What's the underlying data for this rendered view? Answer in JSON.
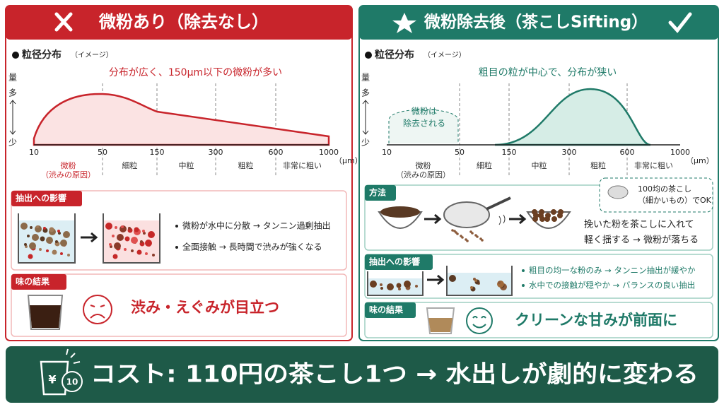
{
  "left": {
    "title": "微粉あり（除去なし）",
    "chart": {
      "heading": "粒径分布",
      "note": "（イメージ）",
      "annotation": "分布が広く、150μm以下の微粉が多い",
      "y_label": "量",
      "y_high": "多",
      "y_low": "少",
      "x_ticks": [
        10,
        50,
        150,
        300,
        600,
        1000
      ],
      "x_unit": "（μm）",
      "ranges": [
        "微粉",
        "細粒",
        "中粒",
        "粗粒",
        "非常に粗い"
      ],
      "fines_note": "（渋みの原因）"
    },
    "extraction": {
      "label": "抽出への影響",
      "points": [
        "微粉が水中に分散 → タンニン過剰抽出",
        "全面接触 → 長時間で渋みが強くなる"
      ]
    },
    "taste": {
      "label": "味の結果",
      "text": "渋み・えぐみが目立つ"
    }
  },
  "right": {
    "title": "微粉除去後（茶こしSifting）",
    "chart": {
      "heading": "粒径分布",
      "note": "（イメージ）",
      "annotation": "粗目の粒が中心で、分布が狭い",
      "y_label": "量",
      "y_high": "多",
      "y_low": "少",
      "x_ticks": [
        10,
        50,
        150,
        300,
        600,
        1000
      ],
      "x_unit": "（μm）",
      "ranges": [
        "微粉",
        "細粒",
        "中粒",
        "粗粒",
        "非常に粗い"
      ],
      "fines_note": "（渋みの原因）",
      "removed": [
        "微粉は",
        "除去される"
      ]
    },
    "method": {
      "label": "方法",
      "tip": [
        "100均の茶こし",
        "（細かいもの）でOK"
      ],
      "steps": [
        "挽いた粉を茶こしに入れて",
        "軽く揺する → 微粉が落ちる"
      ]
    },
    "extraction": {
      "label": "抽出への影響",
      "points": [
        "粗目の均一な粉のみ → タンニン抽出が緩やか",
        "水中での接触が穏やか → バランスの良い抽出"
      ]
    },
    "taste": {
      "label": "味の結果",
      "text": "クリーンな甘みが前面に"
    }
  },
  "footer": {
    "icon_currency": "¥",
    "icon_amount": "10",
    "text": "コスト: 110円の茶こし1つ → 水出しが劇的に変わる"
  }
}
